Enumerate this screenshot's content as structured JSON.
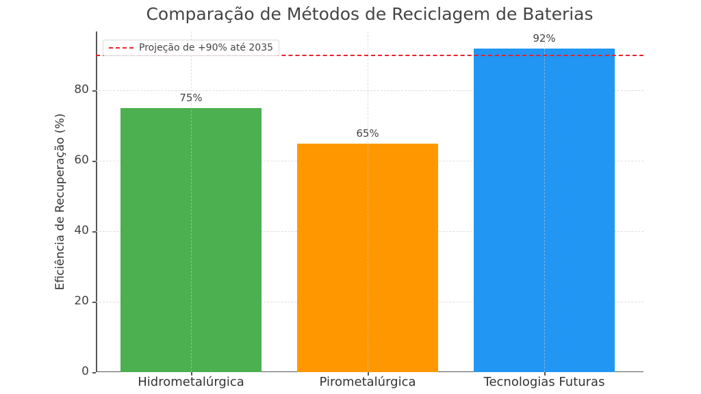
{
  "chart_data": {
    "type": "bar",
    "title": "Comparação de Métodos de Reciclagem de Baterias",
    "xlabel": "",
    "ylabel": "Eficiência de Recuperação (%)",
    "categories": [
      "Hidrometalúrgica",
      "Pirometalúrgica",
      "Tecnologias Futuras"
    ],
    "values": [
      75,
      65,
      92
    ],
    "value_labels": [
      "75%",
      "65%",
      "92%"
    ],
    "colors": [
      "#4caf50",
      "#ff9800",
      "#2196f3"
    ],
    "ylim": [
      0,
      96.8
    ],
    "yticks": [
      0,
      20,
      40,
      60,
      80
    ],
    "grid": true,
    "reference_line": {
      "value": 90,
      "label": "Projeção de +90% até 2035",
      "color": "#e8212a",
      "style": "dashed"
    },
    "legend": {
      "position": "upper left",
      "entries": [
        "Projeção de +90% até 2035"
      ]
    }
  }
}
